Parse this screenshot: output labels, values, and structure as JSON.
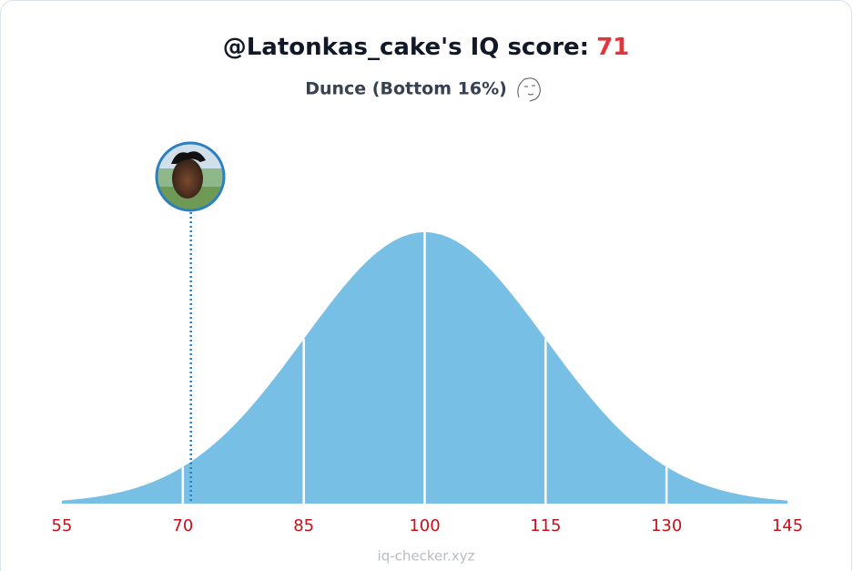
{
  "chart_data": {
    "type": "distribution",
    "title": "@Latonkas_cake's IQ score:",
    "score": 71,
    "subtitle": "Dunce (Bottom 16%)",
    "xlim": [
      55,
      145
    ],
    "xticks": [
      55,
      70,
      85,
      100,
      115,
      130,
      145
    ],
    "color": "#78bfe6",
    "marker_color": "#2b7fc0",
    "score_color": "#e0353b",
    "tick_color": "#c8101a",
    "footer": "iq-checker.xyz"
  }
}
